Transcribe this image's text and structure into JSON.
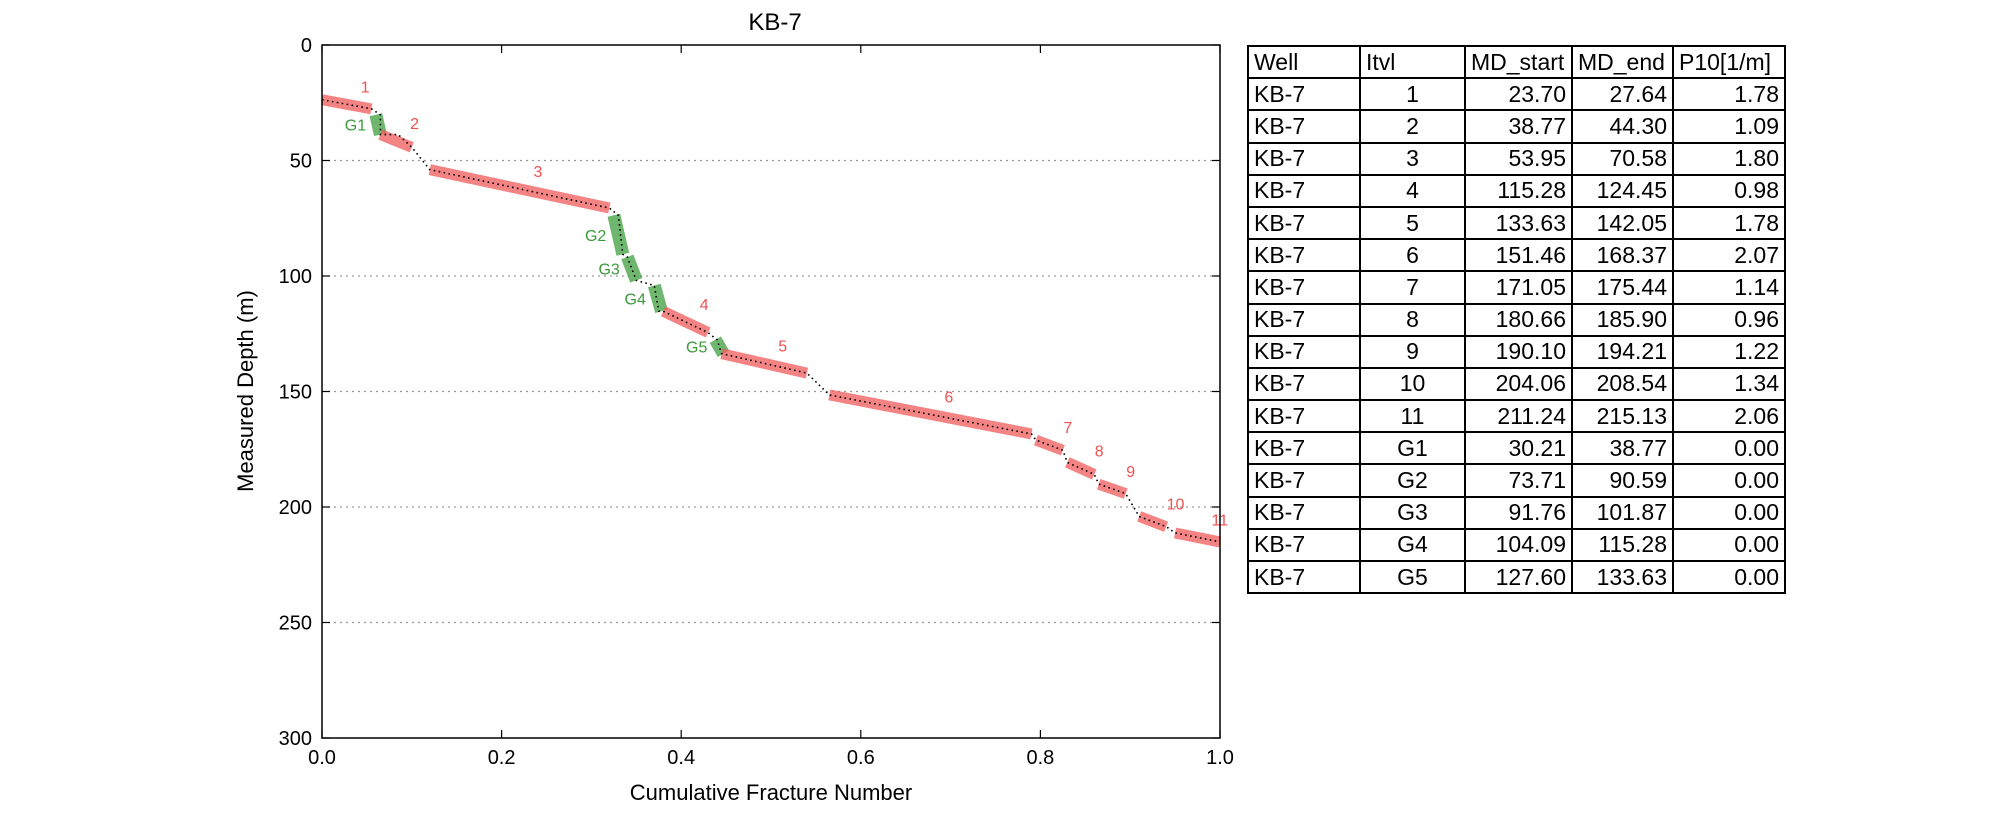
{
  "chart_data": {
    "type": "scatter",
    "title": "KB-7",
    "xlabel": "Cumulative Fracture Number",
    "ylabel": "Measured Depth (m)",
    "xlim": [
      0.0,
      1.0
    ],
    "ylim": [
      300,
      0
    ],
    "y_inverted": true,
    "xticks": [
      "0.0",
      "0.2",
      "0.4",
      "0.6",
      "0.8",
      "1.0"
    ],
    "yticks": [
      "0",
      "50",
      "100",
      "150",
      "200",
      "250",
      "300"
    ],
    "ygrid_values": [
      50,
      100,
      150,
      200,
      250
    ],
    "grid": "horizontal dotted",
    "colors": {
      "interval": "#f05a5a",
      "gap": "#3f9e3f",
      "points": "#000000",
      "interval_label": "#f05050",
      "gap_label": "#3b9a3b"
    },
    "fracture_curve": [
      [
        0.0,
        23.7
      ],
      [
        0.055,
        27.6
      ],
      [
        0.065,
        30.2
      ],
      [
        0.065,
        38.8
      ],
      [
        0.085,
        38.8
      ],
      [
        0.1,
        44.3
      ],
      [
        0.12,
        53.95
      ],
      [
        0.32,
        70.6
      ],
      [
        0.33,
        73.7
      ],
      [
        0.335,
        90.6
      ],
      [
        0.34,
        91.8
      ],
      [
        0.35,
        101.9
      ],
      [
        0.37,
        104.1
      ],
      [
        0.375,
        115.3
      ],
      [
        0.38,
        115.3
      ],
      [
        0.43,
        124.5
      ],
      [
        0.44,
        127.6
      ],
      [
        0.445,
        133.6
      ],
      [
        0.445,
        133.6
      ],
      [
        0.54,
        142.05
      ],
      [
        0.565,
        151.5
      ],
      [
        0.79,
        168.4
      ],
      [
        0.795,
        171.05
      ],
      [
        0.825,
        175.4
      ],
      [
        0.83,
        180.7
      ],
      [
        0.86,
        185.9
      ],
      [
        0.865,
        190.1
      ],
      [
        0.895,
        194.2
      ],
      [
        0.91,
        204.1
      ],
      [
        0.94,
        208.5
      ],
      [
        0.95,
        211.2
      ],
      [
        1.0,
        215.1
      ]
    ],
    "intervals": [
      {
        "label": "1",
        "x": [
          0.0,
          0.055
        ],
        "md": [
          23.7,
          27.64
        ]
      },
      {
        "label": "2",
        "x": [
          0.065,
          0.1
        ],
        "md": [
          38.77,
          44.3
        ]
      },
      {
        "label": "3",
        "x": [
          0.12,
          0.32
        ],
        "md": [
          53.95,
          70.58
        ]
      },
      {
        "label": "4",
        "x": [
          0.38,
          0.43
        ],
        "md": [
          115.28,
          124.45
        ]
      },
      {
        "label": "5",
        "x": [
          0.445,
          0.54
        ],
        "md": [
          133.63,
          142.05
        ]
      },
      {
        "label": "6",
        "x": [
          0.565,
          0.79
        ],
        "md": [
          151.46,
          168.37
        ]
      },
      {
        "label": "7",
        "x": [
          0.795,
          0.825
        ],
        "md": [
          171.05,
          175.44
        ]
      },
      {
        "label": "8",
        "x": [
          0.83,
          0.86
        ],
        "md": [
          180.66,
          185.9
        ]
      },
      {
        "label": "9",
        "x": [
          0.865,
          0.895
        ],
        "md": [
          190.1,
          194.21
        ]
      },
      {
        "label": "10",
        "x": [
          0.91,
          0.94
        ],
        "md": [
          204.06,
          208.54
        ]
      },
      {
        "label": "11",
        "x": [
          0.95,
          1.0
        ],
        "md": [
          211.24,
          215.13
        ]
      }
    ],
    "gaps": [
      {
        "label": "G1",
        "x": [
          0.06,
          0.065
        ],
        "md": [
          30.21,
          38.77
        ]
      },
      {
        "label": "G2",
        "x": [
          0.325,
          0.335
        ],
        "md": [
          73.71,
          90.59
        ]
      },
      {
        "label": "G3",
        "x": [
          0.34,
          0.35
        ],
        "md": [
          91.76,
          101.87
        ]
      },
      {
        "label": "G4",
        "x": [
          0.37,
          0.378
        ],
        "md": [
          104.09,
          115.28
        ]
      },
      {
        "label": "G5",
        "x": [
          0.438,
          0.447
        ],
        "md": [
          127.6,
          133.63
        ]
      }
    ]
  },
  "table": {
    "headers": [
      "Well",
      "Itvl",
      "MD_start",
      "MD_end",
      "P10[1/m]"
    ],
    "rows": [
      [
        "KB-7",
        "1",
        "23.70",
        "27.64",
        "1.78"
      ],
      [
        "KB-7",
        "2",
        "38.77",
        "44.30",
        "1.09"
      ],
      [
        "KB-7",
        "3",
        "53.95",
        "70.58",
        "1.80"
      ],
      [
        "KB-7",
        "4",
        "115.28",
        "124.45",
        "0.98"
      ],
      [
        "KB-7",
        "5",
        "133.63",
        "142.05",
        "1.78"
      ],
      [
        "KB-7",
        "6",
        "151.46",
        "168.37",
        "2.07"
      ],
      [
        "KB-7",
        "7",
        "171.05",
        "175.44",
        "1.14"
      ],
      [
        "KB-7",
        "8",
        "180.66",
        "185.90",
        "0.96"
      ],
      [
        "KB-7",
        "9",
        "190.10",
        "194.21",
        "1.22"
      ],
      [
        "KB-7",
        "10",
        "204.06",
        "208.54",
        "1.34"
      ],
      [
        "KB-7",
        "11",
        "211.24",
        "215.13",
        "2.06"
      ],
      [
        "KB-7",
        "G1",
        "30.21",
        "38.77",
        "0.00"
      ],
      [
        "KB-7",
        "G2",
        "73.71",
        "90.59",
        "0.00"
      ],
      [
        "KB-7",
        "G3",
        "91.76",
        "101.87",
        "0.00"
      ],
      [
        "KB-7",
        "G4",
        "104.09",
        "115.28",
        "0.00"
      ],
      [
        "KB-7",
        "G5",
        "127.60",
        "133.63",
        "0.00"
      ]
    ]
  }
}
